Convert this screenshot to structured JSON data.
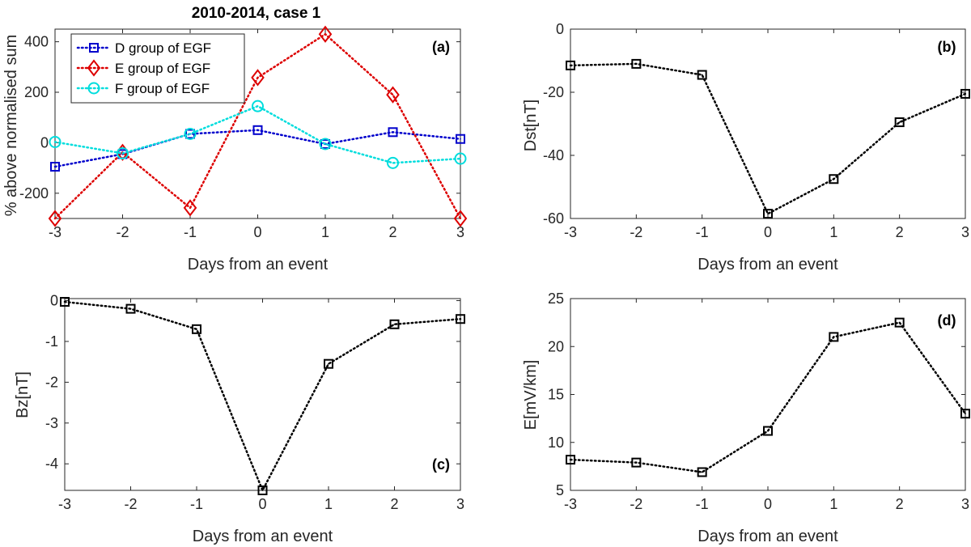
{
  "chart_data": [
    {
      "type": "line",
      "panel": "(a)",
      "title": "2010-2014, case 1",
      "xlabel": "Days from an event",
      "ylabel": "% above normalised sum",
      "x": [
        -3,
        -2,
        -1,
        0,
        1,
        2,
        3
      ],
      "xticks": [
        "-3",
        "-2",
        "-1",
        "0",
        "1",
        "2",
        "3"
      ],
      "ylim": [
        -300,
        450
      ],
      "yticks": [
        -200,
        0,
        200,
        400
      ],
      "ytick_labels": [
        "-200",
        "0",
        "200",
        "400"
      ],
      "series": [
        {
          "name": "D group of EGF",
          "color": "#0000cc",
          "marker": "square",
          "values": [
            -95,
            -45,
            35,
            50,
            -5,
            42,
            15
          ]
        },
        {
          "name": "E group of EGF",
          "color": "#dd0000",
          "marker": "diamond",
          "values": [
            -300,
            -38,
            -258,
            258,
            430,
            190,
            -300
          ]
        },
        {
          "name": "F group of EGF",
          "color": "#00dddd",
          "marker": "circle",
          "values": [
            3,
            -42,
            35,
            145,
            -5,
            -80,
            -63
          ]
        }
      ]
    },
    {
      "type": "line",
      "panel": "(b)",
      "xlabel": "Days from an event",
      "ylabel": "Dst[nT]",
      "x": [
        -3,
        -2,
        -1,
        0,
        1,
        2,
        3
      ],
      "xticks": [
        "-3",
        "-2",
        "-1",
        "0",
        "1",
        "2",
        "3"
      ],
      "ylim": [
        -60,
        0
      ],
      "yticks": [
        -60,
        -40,
        -20,
        0
      ],
      "ytick_labels": [
        "-60",
        "-40",
        "-20",
        "0"
      ],
      "series": [
        {
          "name": "Dst",
          "color": "#000000",
          "marker": "square",
          "values": [
            -11.5,
            -11,
            -14.5,
            -58.5,
            -47.5,
            -29.5,
            -20.5
          ]
        }
      ]
    },
    {
      "type": "line",
      "panel": "(c)",
      "xlabel": "Days from an event",
      "ylabel": "Bz[nT]",
      "x": [
        -3,
        -2,
        -1,
        0,
        1,
        2,
        3
      ],
      "xticks": [
        "-3",
        "-2",
        "-1",
        "0",
        "1",
        "2",
        "3"
      ],
      "ylim": [
        -4.65,
        0.05
      ],
      "yticks": [
        -4,
        -3,
        -2,
        -1,
        0
      ],
      "ytick_labels": [
        "-4",
        "-3",
        "-2",
        "-1",
        "0"
      ],
      "series": [
        {
          "name": "Bz",
          "color": "#000000",
          "marker": "square",
          "values": [
            -0.03,
            -0.2,
            -0.7,
            -4.65,
            -1.55,
            -0.58,
            -0.45
          ]
        }
      ]
    },
    {
      "type": "line",
      "panel": "(d)",
      "xlabel": "Days from an event",
      "ylabel": "E[mV/km]",
      "x": [
        -3,
        -2,
        -1,
        0,
        1,
        2,
        3
      ],
      "xticks": [
        "-3",
        "-2",
        "-1",
        "0",
        "1",
        "2",
        "3"
      ],
      "ylim": [
        5,
        25
      ],
      "yticks": [
        5,
        10,
        15,
        20,
        25
      ],
      "ytick_labels": [
        "5",
        "10",
        "15",
        "20",
        "25"
      ],
      "series": [
        {
          "name": "E",
          "color": "#000000",
          "marker": "square",
          "values": [
            8.2,
            7.9,
            6.9,
            11.2,
            21,
            22.5,
            13
          ]
        }
      ]
    }
  ]
}
